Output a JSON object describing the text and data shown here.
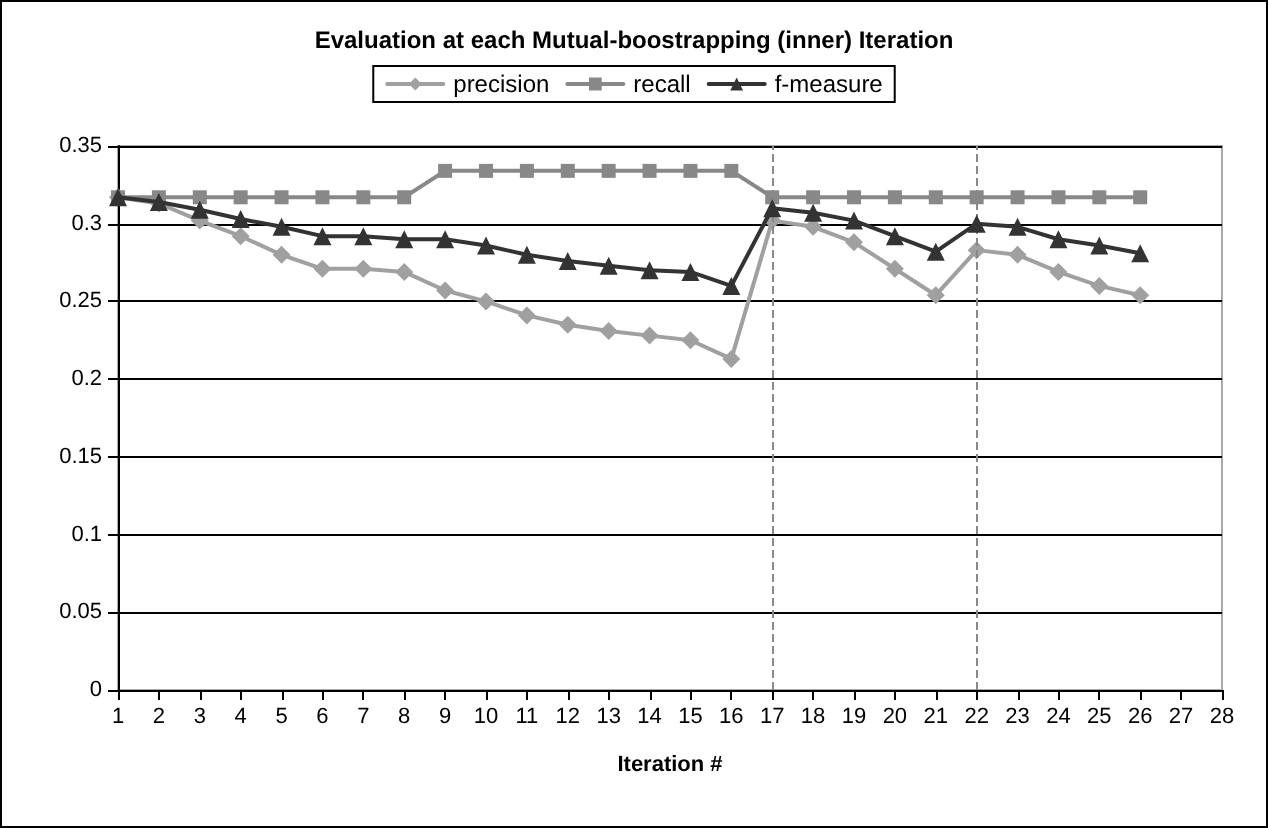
{
  "chart_data": {
    "type": "line",
    "title": "Evaluation at each Mutual-boostrapping (inner) Iteration",
    "xlabel": "Iteration #",
    "x": [
      1,
      2,
      3,
      4,
      5,
      6,
      7,
      8,
      9,
      10,
      11,
      12,
      13,
      14,
      15,
      16,
      17,
      18,
      19,
      20,
      21,
      22,
      23,
      24,
      25,
      26
    ],
    "series": [
      {
        "name": "precision",
        "color": "#a0a0a0",
        "marker": "diamond",
        "values": [
          0.317,
          0.313,
          0.302,
          0.292,
          0.28,
          0.271,
          0.271,
          0.269,
          0.257,
          0.25,
          0.241,
          0.235,
          0.231,
          0.228,
          0.225,
          0.213,
          0.302,
          0.298,
          0.288,
          0.271,
          0.254,
          0.283,
          0.28,
          0.269,
          0.26,
          0.254
        ]
      },
      {
        "name": "recall",
        "color": "#888888",
        "marker": "square",
        "values": [
          0.317,
          0.317,
          0.317,
          0.317,
          0.317,
          0.317,
          0.317,
          0.317,
          0.334,
          0.334,
          0.334,
          0.334,
          0.334,
          0.334,
          0.334,
          0.334,
          0.317,
          0.317,
          0.317,
          0.317,
          0.317,
          0.317,
          0.317,
          0.317,
          0.317,
          0.317
        ]
      },
      {
        "name": "f-measure",
        "color": "#333333",
        "marker": "triangle",
        "values": [
          0.317,
          0.314,
          0.309,
          0.303,
          0.298,
          0.292,
          0.292,
          0.29,
          0.29,
          0.286,
          0.28,
          0.276,
          0.273,
          0.27,
          0.269,
          0.26,
          0.31,
          0.307,
          0.302,
          0.292,
          0.282,
          0.3,
          0.298,
          0.29,
          0.286,
          0.281
        ]
      }
    ],
    "xlim": [
      1,
      28
    ],
    "xticks": [
      1,
      2,
      3,
      4,
      5,
      6,
      7,
      8,
      9,
      10,
      11,
      12,
      13,
      14,
      15,
      16,
      17,
      18,
      19,
      20,
      21,
      22,
      23,
      24,
      25,
      26,
      27,
      28
    ],
    "ylim": [
      0,
      0.35
    ],
    "yticks": [
      0,
      0.05,
      0.1,
      0.15,
      0.2,
      0.25,
      0.3,
      0.35
    ],
    "ref_lines": [
      {
        "axis": "x",
        "value": 17,
        "color": "#888888",
        "line_style": "dashed"
      },
      {
        "axis": "x",
        "value": 22,
        "color": "#888888",
        "line_style": "dashed"
      }
    ],
    "grid": "y",
    "legend": "top",
    "line_style": "solid"
  }
}
